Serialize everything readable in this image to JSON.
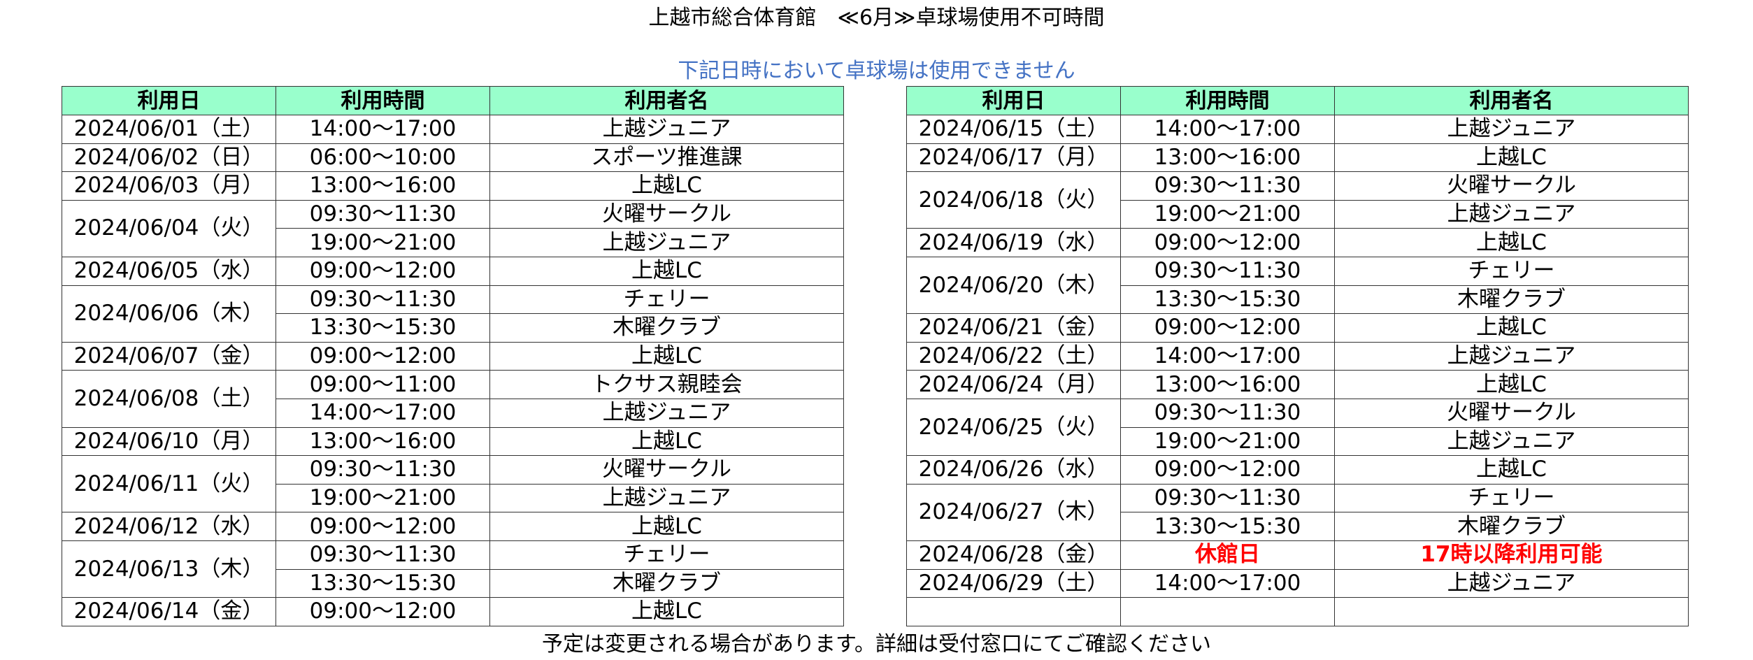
{
  "title": "上越市総合体育館　≪6月≫卓球場使用不可時間",
  "subtitle": "下記日時において卓球場は使用できません",
  "footer": "予定は変更される場合があります。詳細は受付窓口にてご確認ください",
  "colors": {
    "header_bg": "#99ffcc",
    "subtitle": "#4472c4",
    "alert": "#ff0000"
  },
  "headers": {
    "date": "利用日",
    "time": "利用時間",
    "user": "利用者名"
  },
  "left_table": [
    {
      "date": "2024/06/01（土）",
      "slots": [
        {
          "time": "14:00～17:00",
          "user": "上越ジュニア"
        }
      ]
    },
    {
      "date": "2024/06/02（日）",
      "slots": [
        {
          "time": "06:00～10:00",
          "user": "スポーツ推進課"
        }
      ]
    },
    {
      "date": "2024/06/03（月）",
      "slots": [
        {
          "time": "13:00～16:00",
          "user": "上越LC"
        }
      ]
    },
    {
      "date": "2024/06/04（火）",
      "slots": [
        {
          "time": "09:30～11:30",
          "user": "火曜サークル"
        },
        {
          "time": "19:00～21:00",
          "user": "上越ジュニア"
        }
      ]
    },
    {
      "date": "2024/06/05（水）",
      "slots": [
        {
          "time": "09:00～12:00",
          "user": "上越LC"
        }
      ]
    },
    {
      "date": "2024/06/06（木）",
      "slots": [
        {
          "time": "09:30～11:30",
          "user": "チェリー"
        },
        {
          "time": "13:30～15:30",
          "user": "木曜クラブ"
        }
      ]
    },
    {
      "date": "2024/06/07（金）",
      "slots": [
        {
          "time": "09:00～12:00",
          "user": "上越LC"
        }
      ]
    },
    {
      "date": "2024/06/08（土）",
      "slots": [
        {
          "time": "09:00～11:00",
          "user": "トクサス親睦会"
        },
        {
          "time": "14:00～17:00",
          "user": "上越ジュニア"
        }
      ]
    },
    {
      "date": "2024/06/10（月）",
      "slots": [
        {
          "time": "13:00～16:00",
          "user": "上越LC"
        }
      ]
    },
    {
      "date": "2024/06/11（火）",
      "slots": [
        {
          "time": "09:30～11:30",
          "user": "火曜サークル"
        },
        {
          "time": "19:00～21:00",
          "user": "上越ジュニア"
        }
      ]
    },
    {
      "date": "2024/06/12（水）",
      "slots": [
        {
          "time": "09:00～12:00",
          "user": "上越LC"
        }
      ]
    },
    {
      "date": "2024/06/13（木）",
      "slots": [
        {
          "time": "09:30～11:30",
          "user": "チェリー"
        },
        {
          "time": "13:30～15:30",
          "user": "木曜クラブ"
        }
      ]
    },
    {
      "date": "2024/06/14（金）",
      "slots": [
        {
          "time": "09:00～12:00",
          "user": "上越LC"
        }
      ]
    }
  ],
  "right_table": [
    {
      "date": "2024/06/15（土）",
      "slots": [
        {
          "time": "14:00～17:00",
          "user": "上越ジュニア"
        }
      ]
    },
    {
      "date": "2024/06/17（月）",
      "slots": [
        {
          "time": "13:00～16:00",
          "user": "上越LC"
        }
      ]
    },
    {
      "date": "2024/06/18（火）",
      "slots": [
        {
          "time": "09:30～11:30",
          "user": "火曜サークル"
        },
        {
          "time": "19:00～21:00",
          "user": "上越ジュニア"
        }
      ]
    },
    {
      "date": "2024/06/19（水）",
      "slots": [
        {
          "time": "09:00～12:00",
          "user": "上越LC"
        }
      ]
    },
    {
      "date": "2024/06/20（木）",
      "slots": [
        {
          "time": "09:30～11:30",
          "user": "チェリー"
        },
        {
          "time": "13:30～15:30",
          "user": "木曜クラブ"
        }
      ]
    },
    {
      "date": "2024/06/21（金）",
      "slots": [
        {
          "time": "09:00～12:00",
          "user": "上越LC"
        }
      ]
    },
    {
      "date": "2024/06/22（土）",
      "slots": [
        {
          "time": "14:00～17:00",
          "user": "上越ジュニア"
        }
      ]
    },
    {
      "date": "2024/06/24（月）",
      "slots": [
        {
          "time": "13:00～16:00",
          "user": "上越LC"
        }
      ]
    },
    {
      "date": "2024/06/25（火）",
      "slots": [
        {
          "time": "09:30～11:30",
          "user": "火曜サークル"
        },
        {
          "time": "19:00～21:00",
          "user": "上越ジュニア"
        }
      ]
    },
    {
      "date": "2024/06/26（水）",
      "slots": [
        {
          "time": "09:00～12:00",
          "user": "上越LC"
        }
      ]
    },
    {
      "date": "2024/06/27（木）",
      "slots": [
        {
          "time": "09:30～11:30",
          "user": "チェリー"
        },
        {
          "time": "13:30～15:30",
          "user": "木曜クラブ"
        }
      ]
    },
    {
      "date": "2024/06/28（金）",
      "slots": [
        {
          "time": "休館日",
          "user": "17時以降利用可能",
          "alert": true
        }
      ]
    },
    {
      "date": "2024/06/29（土）",
      "slots": [
        {
          "time": "14:00～17:00",
          "user": "上越ジュニア"
        }
      ]
    },
    {
      "date": "",
      "slots": [
        {
          "time": "",
          "user": ""
        }
      ]
    }
  ]
}
